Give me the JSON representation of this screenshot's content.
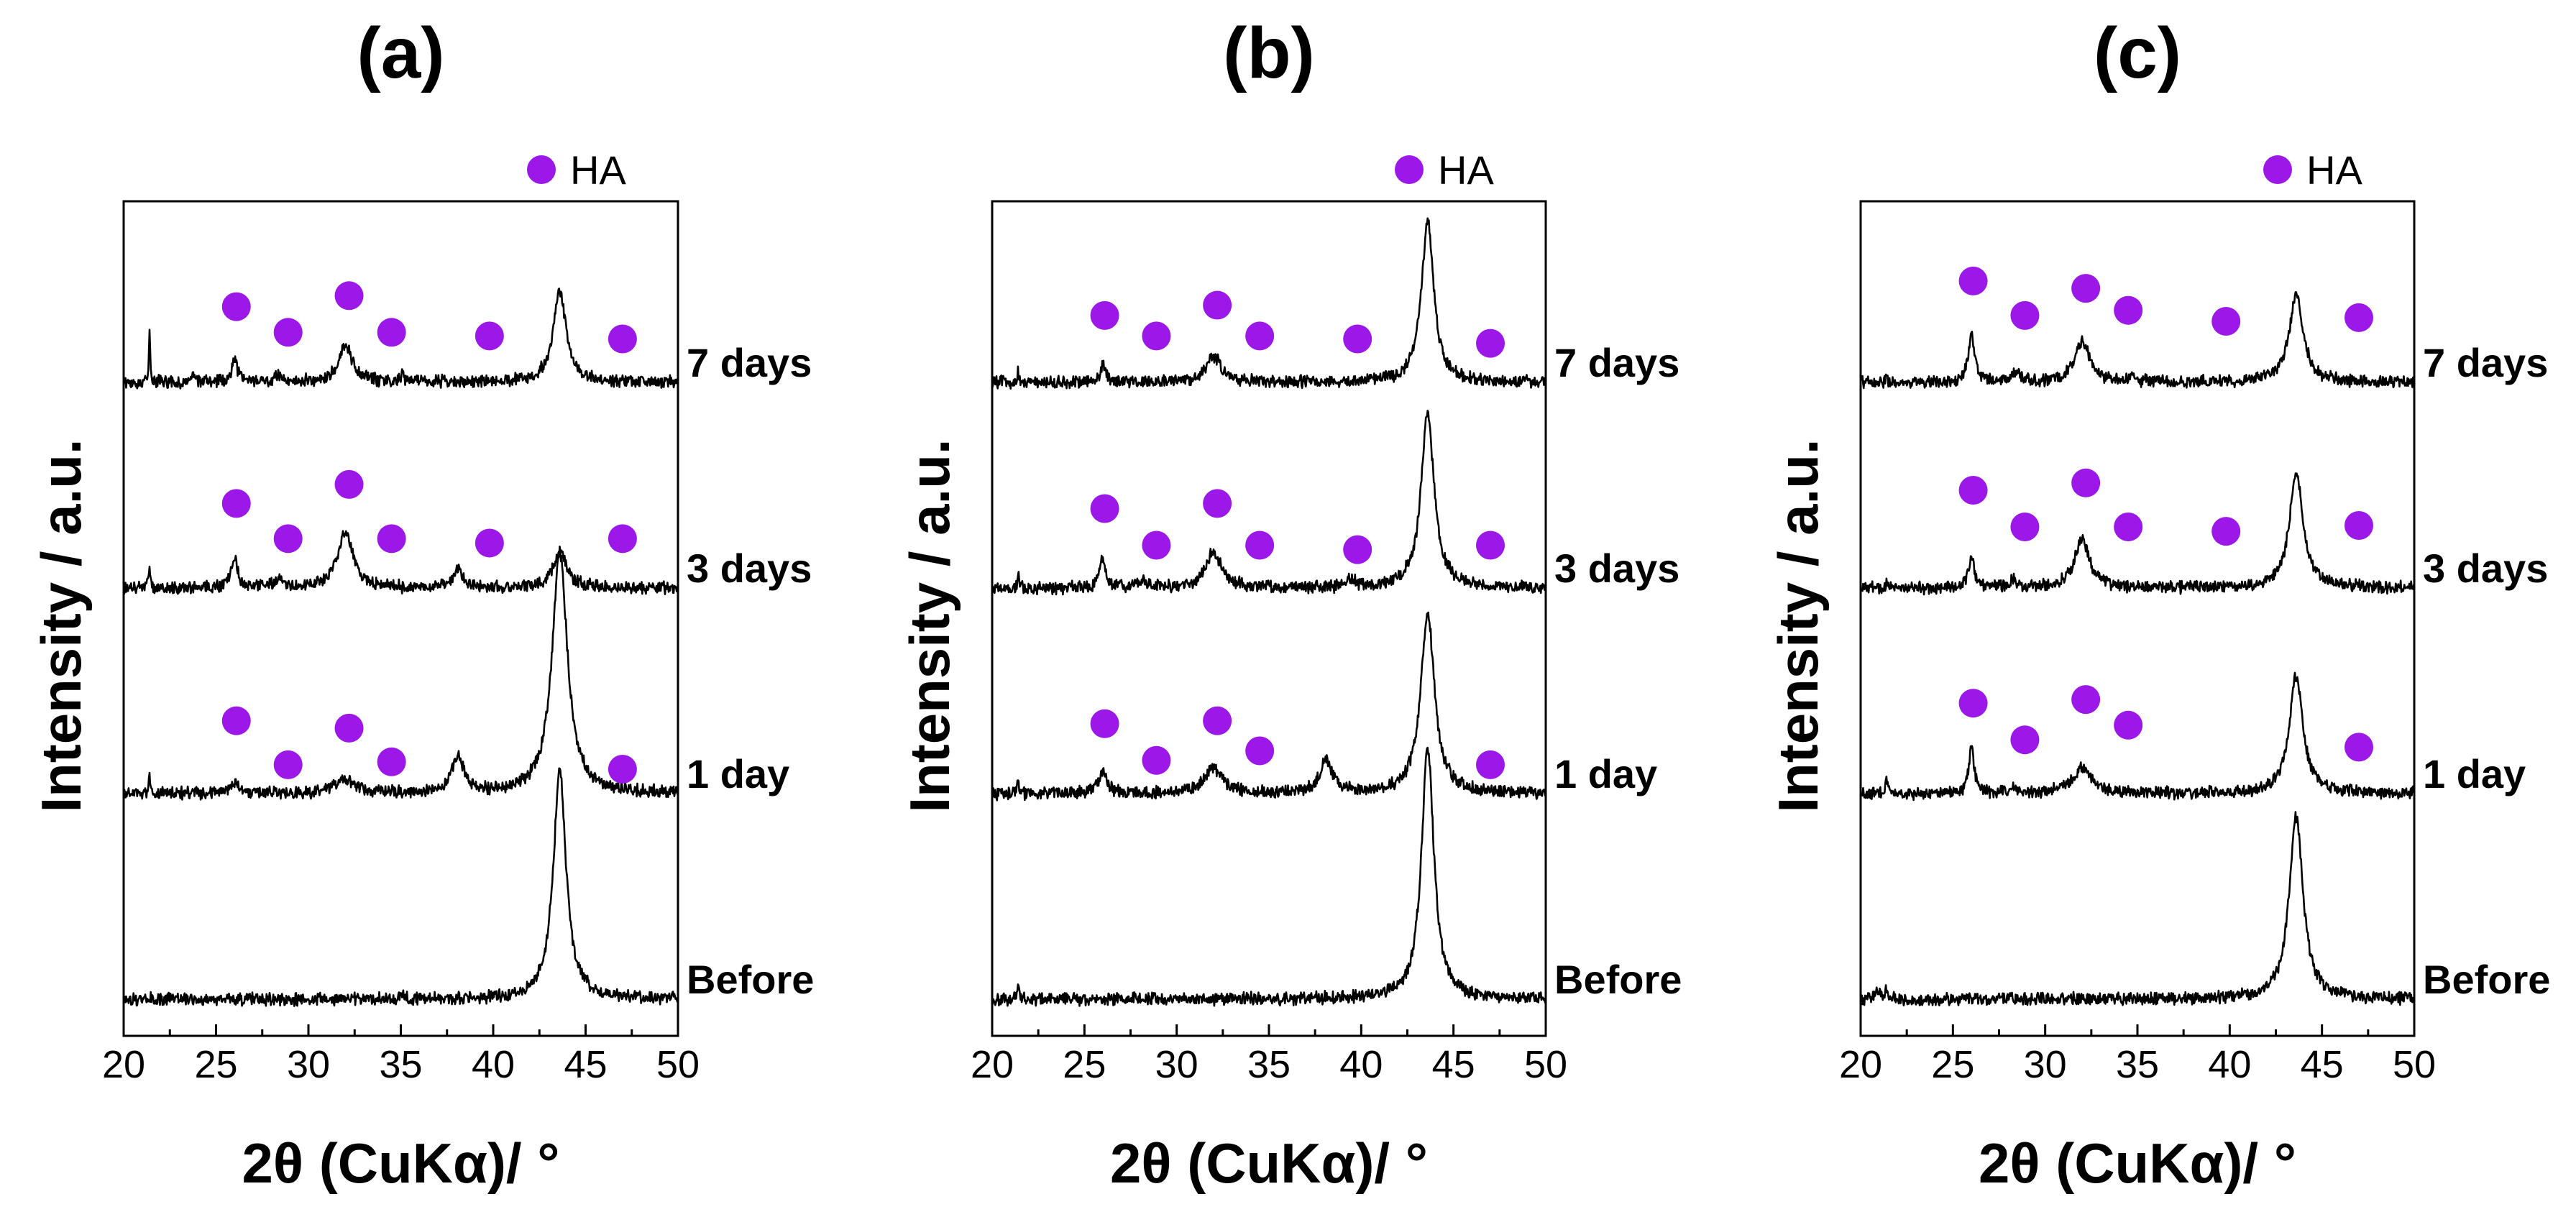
{
  "chart_data": [
    {
      "type": "line",
      "panel_label": "(a)",
      "xlabel": "2θ (CuKα)/ °",
      "ylabel": "Intensity / a.u.",
      "xlim": [
        20,
        50
      ],
      "xticks": [
        20,
        25,
        30,
        35,
        40,
        45,
        50
      ],
      "legend": {
        "label": "HA",
        "marker_color": "#9b18e8",
        "position": "top-right"
      },
      "series": [
        {
          "name": "Before",
          "offset": 0,
          "peaks": [
            [
              35.1,
              0.05,
              0.12
            ],
            [
              43.6,
              0.42,
              3.1
            ]
          ],
          "ha_markers": []
        },
        {
          "name": "1 day",
          "offset": 1,
          "peaks": [
            [
              21.4,
              0.05,
              0.2
            ],
            [
              26.0,
              0.3,
              0.14
            ],
            [
              32.0,
              0.7,
              0.18
            ],
            [
              38.1,
              0.4,
              0.48
            ],
            [
              43.6,
              0.5,
              3.3
            ]
          ],
          "ha_markers": [
            {
              "x": 26.1,
              "level": 0.66
            },
            {
              "x": 28.9,
              "level": 0.06
            },
            {
              "x": 32.2,
              "level": 0.56
            },
            {
              "x": 34.5,
              "level": 0.1
            },
            {
              "x": 47.0,
              "level": 0.0
            }
          ]
        },
        {
          "name": "3 days",
          "offset": 2,
          "peaks": [
            [
              21.4,
              0.05,
              0.3
            ],
            [
              26.0,
              0.2,
              0.42
            ],
            [
              28.4,
              0.25,
              0.12
            ],
            [
              32.0,
              0.5,
              0.75
            ],
            [
              38.1,
              0.3,
              0.25
            ],
            [
              43.6,
              0.45,
              0.48
            ]
          ],
          "ha_markers": [
            {
              "x": 26.1,
              "level": 0.82
            },
            {
              "x": 28.9,
              "level": 0.34
            },
            {
              "x": 32.2,
              "level": 1.08
            },
            {
              "x": 34.5,
              "level": 0.34
            },
            {
              "x": 39.8,
              "level": 0.28
            },
            {
              "x": 47.0,
              "level": 0.34
            }
          ]
        },
        {
          "name": "7 days",
          "offset": 3,
          "peaks": [
            [
              21.4,
              0.05,
              0.68
            ],
            [
              23.8,
              0.08,
              0.12
            ],
            [
              26.0,
              0.18,
              0.32
            ],
            [
              28.4,
              0.25,
              0.1
            ],
            [
              32.0,
              0.45,
              0.5
            ],
            [
              35.1,
              0.05,
              0.12
            ],
            [
              43.6,
              0.42,
              1.25
            ]
          ],
          "ha_markers": [
            {
              "x": 26.1,
              "level": 0.7
            },
            {
              "x": 28.9,
              "level": 0.35
            },
            {
              "x": 32.2,
              "level": 0.85
            },
            {
              "x": 34.5,
              "level": 0.35
            },
            {
              "x": 39.8,
              "level": 0.3
            },
            {
              "x": 47.0,
              "level": 0.26
            }
          ]
        }
      ]
    },
    {
      "type": "line",
      "panel_label": "(b)",
      "xlabel": "2θ (CuKα)/ °",
      "ylabel": "Intensity / a.u.",
      "xlim": [
        20,
        50
      ],
      "xticks": [
        20,
        25,
        30,
        35,
        40,
        45,
        50
      ],
      "legend": {
        "label": "HA",
        "marker_color": "#9b18e8",
        "position": "top-right"
      },
      "series": [
        {
          "name": "Before",
          "offset": 0,
          "peaks": [
            [
              21.4,
              0.05,
              0.25
            ],
            [
              43.6,
              0.4,
              3.45
            ]
          ],
          "ha_markers": []
        },
        {
          "name": "1 day",
          "offset": 1,
          "peaks": [
            [
              21.4,
              0.05,
              0.18
            ],
            [
              26.0,
              0.25,
              0.32
            ],
            [
              32.0,
              0.6,
              0.35
            ],
            [
              38.1,
              0.4,
              0.45
            ],
            [
              43.6,
              0.45,
              2.45
            ]
          ],
          "ha_markers": [
            {
              "x": 26.1,
              "level": 0.62
            },
            {
              "x": 28.9,
              "level": 0.12
            },
            {
              "x": 32.2,
              "level": 0.66
            },
            {
              "x": 34.5,
              "level": 0.25
            },
            {
              "x": 47.0,
              "level": 0.06
            }
          ]
        },
        {
          "name": "3 days",
          "offset": 2,
          "peaks": [
            [
              21.4,
              0.05,
              0.2
            ],
            [
              26.0,
              0.2,
              0.4
            ],
            [
              28.2,
              0.3,
              0.1
            ],
            [
              32.0,
              0.5,
              0.5
            ],
            [
              39.4,
              0.3,
              0.1
            ],
            [
              43.6,
              0.42,
              2.4
            ]
          ],
          "ha_markers": [
            {
              "x": 26.1,
              "level": 0.75
            },
            {
              "x": 28.9,
              "level": 0.25
            },
            {
              "x": 32.2,
              "level": 0.82
            },
            {
              "x": 34.5,
              "level": 0.25
            },
            {
              "x": 39.8,
              "level": 0.19
            },
            {
              "x": 47.0,
              "level": 0.25
            }
          ]
        },
        {
          "name": "7 days",
          "offset": 3,
          "peaks": [
            [
              21.4,
              0.05,
              0.2
            ],
            [
              26.0,
              0.2,
              0.22
            ],
            [
              32.0,
              0.5,
              0.35
            ],
            [
              43.6,
              0.4,
              2.2
            ]
          ],
          "ha_markers": [
            {
              "x": 26.1,
              "level": 0.58
            },
            {
              "x": 28.9,
              "level": 0.3
            },
            {
              "x": 32.2,
              "level": 0.72
            },
            {
              "x": 34.5,
              "level": 0.3
            },
            {
              "x": 39.8,
              "level": 0.26
            },
            {
              "x": 47.0,
              "level": 0.2
            }
          ]
        }
      ]
    },
    {
      "type": "line",
      "panel_label": "(c)",
      "xlabel": "2θ (CuKα)/ °",
      "ylabel": "Intensity / a.u.",
      "xlim": [
        20,
        50
      ],
      "xticks": [
        20,
        25,
        30,
        35,
        40,
        45,
        50
      ],
      "legend": {
        "label": "HA",
        "marker_color": "#9b18e8",
        "position": "top-right"
      },
      "series": [
        {
          "name": "Before",
          "offset": 0,
          "peaks": [
            [
              20.9,
              0.15,
              0.12
            ],
            [
              21.4,
              0.08,
              0.15
            ],
            [
              43.6,
              0.45,
              2.5
            ]
          ],
          "ha_markers": []
        },
        {
          "name": "1 day",
          "offset": 1,
          "peaks": [
            [
              21.4,
              0.05,
              0.25
            ],
            [
              26.0,
              0.18,
              0.6
            ],
            [
              28.3,
              0.25,
              0.08
            ],
            [
              32.0,
              0.6,
              0.35
            ],
            [
              43.6,
              0.45,
              1.6
            ]
          ],
          "ha_markers": [
            {
              "x": 26.1,
              "level": 0.9
            },
            {
              "x": 28.9,
              "level": 0.4
            },
            {
              "x": 32.2,
              "level": 0.95
            },
            {
              "x": 34.5,
              "level": 0.6
            },
            {
              "x": 47.0,
              "level": 0.3
            }
          ]
        },
        {
          "name": "3 days",
          "offset": 2,
          "peaks": [
            [
              21.4,
              0.05,
              0.1
            ],
            [
              26.0,
              0.2,
              0.4
            ],
            [
              28.3,
              0.2,
              0.1
            ],
            [
              32.0,
              0.5,
              0.65
            ],
            [
              43.6,
              0.45,
              1.55
            ]
          ],
          "ha_markers": [
            {
              "x": 26.1,
              "level": 1.0
            },
            {
              "x": 28.9,
              "level": 0.5
            },
            {
              "x": 32.2,
              "level": 1.1
            },
            {
              "x": 34.5,
              "level": 0.5
            },
            {
              "x": 39.8,
              "level": 0.44
            },
            {
              "x": 47.0,
              "level": 0.52
            }
          ]
        },
        {
          "name": "7 days",
          "offset": 3,
          "peaks": [
            [
              21.4,
              0.05,
              0.1
            ],
            [
              26.0,
              0.2,
              0.65
            ],
            [
              28.4,
              0.25,
              0.12
            ],
            [
              32.0,
              0.5,
              0.55
            ],
            [
              34.8,
              0.2,
              0.08
            ],
            [
              43.6,
              0.45,
              1.2
            ]
          ],
          "ha_markers": [
            {
              "x": 26.1,
              "level": 1.05
            },
            {
              "x": 28.9,
              "level": 0.58
            },
            {
              "x": 32.2,
              "level": 0.95
            },
            {
              "x": 34.5,
              "level": 0.65
            },
            {
              "x": 39.8,
              "level": 0.5
            },
            {
              "x": 47.0,
              "level": 0.55
            }
          ]
        }
      ]
    }
  ]
}
